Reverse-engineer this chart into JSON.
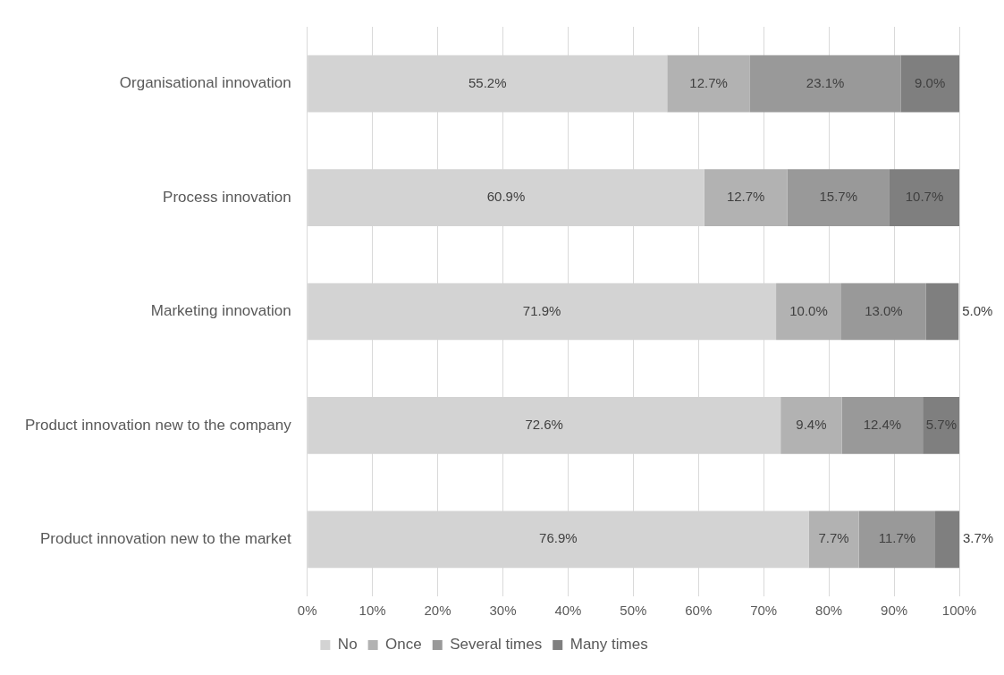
{
  "chart_data": {
    "type": "bar",
    "orientation": "horizontal",
    "stacked": true,
    "categories": [
      "Organisational innovation",
      "Process innovation",
      "Marketing innovation",
      "Product innovation new to the company",
      "Product innovation new to the market"
    ],
    "series": [
      {
        "name": "No",
        "color": "#d3d3d3",
        "values": [
          55.2,
          60.9,
          71.9,
          72.6,
          76.9
        ]
      },
      {
        "name": "Once",
        "color": "#b2b2b2",
        "values": [
          12.7,
          12.7,
          10.0,
          9.4,
          7.7
        ]
      },
      {
        "name": "Several times",
        "color": "#999999",
        "values": [
          23.1,
          15.7,
          13.0,
          12.4,
          11.7
        ]
      },
      {
        "name": "Many times",
        "color": "#7f7f7f",
        "values": [
          9.0,
          10.7,
          5.0,
          5.7,
          3.7
        ]
      }
    ],
    "xlim": [
      0,
      100
    ],
    "xticks": [
      {
        "value": 0,
        "label": "0%"
      },
      {
        "value": 10,
        "label": "10%"
      },
      {
        "value": 20,
        "label": "20%"
      },
      {
        "value": 30,
        "label": "30%"
      },
      {
        "value": 40,
        "label": "40%"
      },
      {
        "value": 50,
        "label": "50%"
      },
      {
        "value": 60,
        "label": "60%"
      },
      {
        "value": 70,
        "label": "70%"
      },
      {
        "value": 80,
        "label": "80%"
      },
      {
        "value": 90,
        "label": "90%"
      },
      {
        "value": 100,
        "label": "100%"
      }
    ],
    "value_labels": [
      [
        "55.2%",
        "60.9%",
        "71.9%",
        "72.6%",
        "76.9%"
      ],
      [
        "12.7%",
        "12.7%",
        "10.0%",
        "9.4%",
        "7.7%"
      ],
      [
        "23.1%",
        "15.7%",
        "13.0%",
        "12.4%",
        "11.7%"
      ],
      [
        "9.0%",
        "10.7%",
        "5.0%",
        "5.7%",
        "3.7%"
      ]
    ],
    "grid": "x",
    "legend": "bottom"
  }
}
